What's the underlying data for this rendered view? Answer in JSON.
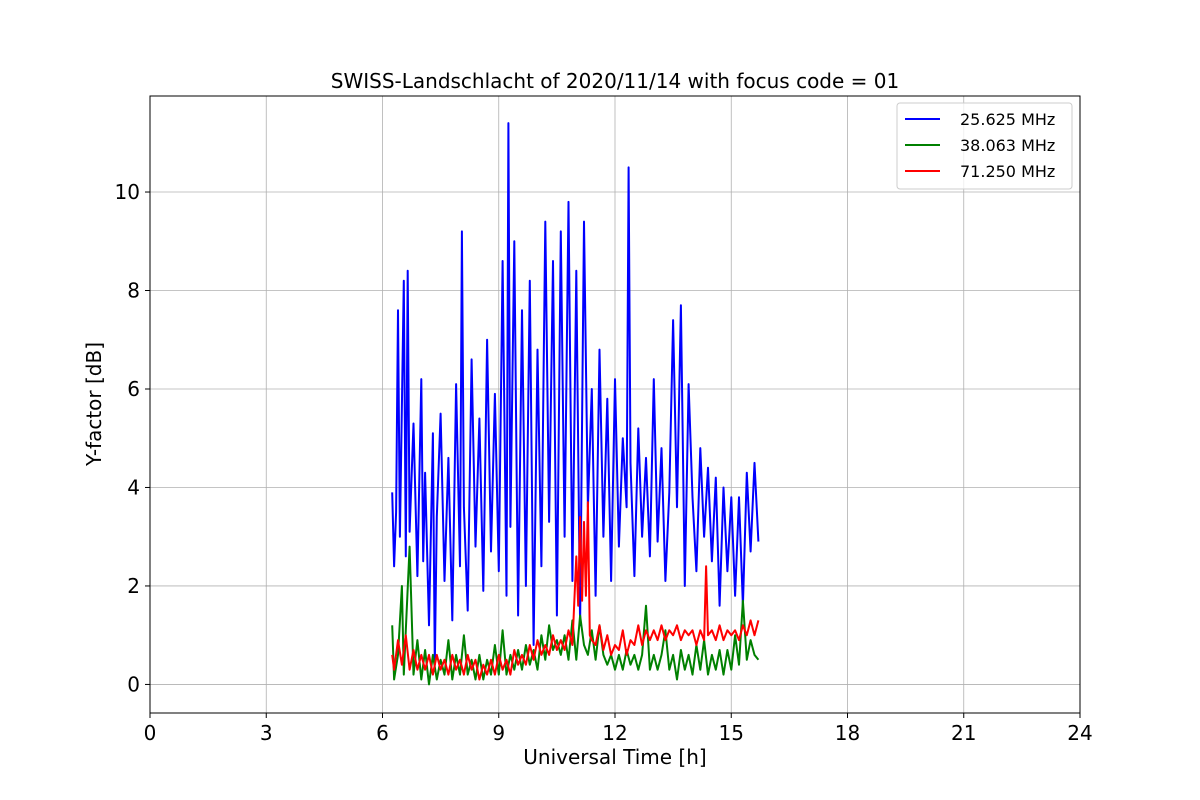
{
  "chart_data": {
    "type": "line",
    "title": "SWISS-Landschlacht of 2020/11/14 with focus code = 01",
    "xlabel": "Universal Time [h]",
    "ylabel": "Y-factor [dB]",
    "xlim": [
      0,
      24
    ],
    "ylim": [
      -0.58,
      11.95
    ],
    "xticks": [
      0,
      3,
      6,
      9,
      12,
      15,
      18,
      21,
      24
    ],
    "xtick_labels": [
      "0",
      "3",
      "6",
      "9",
      "12",
      "15",
      "18",
      "21",
      "24"
    ],
    "yticks": [
      0,
      2,
      4,
      6,
      8,
      10
    ],
    "ytick_labels": [
      "0",
      "2",
      "4",
      "6",
      "8",
      "10"
    ],
    "grid": true,
    "legend_position": "top-right",
    "series": [
      {
        "name": "25.625 MHz",
        "color": "#0000ff",
        "x": [
          6.25,
          6.3,
          6.35,
          6.4,
          6.45,
          6.55,
          6.6,
          6.65,
          6.7,
          6.8,
          6.9,
          7.0,
          7.05,
          7.1,
          7.2,
          7.3,
          7.35,
          7.4,
          7.5,
          7.6,
          7.7,
          7.8,
          7.9,
          8.0,
          8.05,
          8.1,
          8.2,
          8.3,
          8.4,
          8.5,
          8.6,
          8.7,
          8.8,
          8.9,
          9.0,
          9.1,
          9.2,
          9.25,
          9.3,
          9.4,
          9.5,
          9.6,
          9.7,
          9.8,
          9.9,
          10.0,
          10.1,
          10.2,
          10.3,
          10.4,
          10.5,
          10.6,
          10.7,
          10.8,
          10.9,
          11.0,
          11.1,
          11.2,
          11.3,
          11.4,
          11.5,
          11.6,
          11.7,
          11.8,
          11.9,
          12.0,
          12.1,
          12.2,
          12.3,
          12.35,
          12.4,
          12.5,
          12.6,
          12.7,
          12.8,
          12.9,
          13.0,
          13.1,
          13.2,
          13.3,
          13.4,
          13.5,
          13.6,
          13.7,
          13.8,
          13.9,
          14.0,
          14.1,
          14.2,
          14.3,
          14.4,
          14.5,
          14.6,
          14.7,
          14.8,
          14.9,
          15.0,
          15.1,
          15.2,
          15.3,
          15.4,
          15.5,
          15.6,
          15.7
        ],
        "y": [
          3.9,
          2.4,
          3.5,
          7.6,
          3.0,
          8.2,
          2.6,
          8.4,
          3.1,
          5.3,
          2.2,
          6.2,
          2.5,
          4.3,
          1.2,
          5.1,
          0.4,
          3.4,
          5.5,
          2.1,
          4.6,
          1.3,
          6.1,
          2.4,
          9.2,
          3.6,
          1.5,
          6.6,
          2.8,
          5.4,
          1.9,
          7.0,
          2.7,
          5.9,
          2.3,
          8.6,
          1.8,
          11.4,
          3.2,
          9.0,
          1.4,
          7.6,
          2.0,
          8.2,
          0.8,
          6.8,
          2.4,
          9.4,
          3.3,
          8.6,
          1.4,
          9.2,
          3.0,
          9.8,
          2.1,
          8.4,
          1.2,
          9.4,
          3.6,
          6.0,
          1.8,
          6.8,
          3.0,
          5.8,
          2.1,
          6.2,
          2.8,
          5.0,
          3.6,
          10.5,
          4.5,
          2.2,
          5.2,
          3.0,
          4.6,
          2.6,
          6.2,
          2.9,
          4.8,
          2.1,
          3.9,
          7.4,
          3.6,
          7.7,
          2.0,
          6.1,
          3.8,
          2.3,
          4.8,
          3.0,
          4.4,
          2.5,
          4.2,
          1.6,
          4.0,
          2.3,
          3.8,
          1.8,
          3.8,
          1.6,
          4.3,
          2.7,
          4.5,
          2.9
        ]
      },
      {
        "name": "38.063 MHz",
        "color": "#008000",
        "x": [
          6.25,
          6.3,
          6.4,
          6.5,
          6.55,
          6.6,
          6.7,
          6.8,
          6.9,
          7.0,
          7.1,
          7.2,
          7.3,
          7.4,
          7.5,
          7.6,
          7.7,
          7.8,
          7.9,
          8.0,
          8.1,
          8.2,
          8.3,
          8.4,
          8.5,
          8.6,
          8.7,
          8.8,
          8.9,
          9.0,
          9.1,
          9.2,
          9.3,
          9.4,
          9.5,
          9.6,
          9.7,
          9.8,
          9.9,
          10.0,
          10.1,
          10.2,
          10.3,
          10.4,
          10.5,
          10.6,
          10.7,
          10.8,
          10.9,
          11.0,
          11.1,
          11.2,
          11.3,
          11.4,
          11.5,
          11.6,
          11.7,
          11.8,
          11.9,
          12.0,
          12.1,
          12.2,
          12.3,
          12.4,
          12.5,
          12.6,
          12.7,
          12.8,
          12.9,
          13.0,
          13.1,
          13.2,
          13.3,
          13.4,
          13.5,
          13.6,
          13.7,
          13.8,
          13.9,
          14.0,
          14.1,
          14.2,
          14.3,
          14.4,
          14.5,
          14.6,
          14.7,
          14.8,
          14.9,
          15.0,
          15.1,
          15.2,
          15.3,
          15.4,
          15.5,
          15.6,
          15.7
        ],
        "y": [
          1.2,
          0.1,
          0.6,
          2.0,
          0.2,
          1.1,
          2.8,
          0.2,
          0.9,
          0.1,
          0.7,
          0.0,
          0.6,
          0.1,
          0.5,
          0.2,
          0.9,
          0.1,
          0.6,
          0.2,
          1.0,
          0.2,
          0.5,
          0.1,
          0.6,
          0.1,
          0.5,
          0.2,
          0.8,
          0.2,
          1.1,
          0.2,
          0.6,
          0.3,
          0.7,
          0.3,
          0.8,
          0.4,
          0.7,
          0.3,
          1.0,
          0.5,
          1.2,
          0.7,
          0.9,
          0.6,
          1.0,
          0.5,
          1.3,
          0.5,
          1.4,
          0.8,
          0.6,
          1.1,
          0.5,
          1.2,
          0.6,
          0.4,
          0.6,
          0.3,
          0.6,
          0.3,
          0.7,
          0.4,
          0.6,
          0.3,
          0.6,
          1.6,
          0.3,
          0.6,
          0.3,
          0.6,
          1.1,
          0.3,
          0.6,
          0.1,
          0.7,
          0.3,
          0.6,
          0.2,
          0.8,
          0.3,
          0.9,
          0.2,
          0.6,
          0.3,
          0.7,
          0.2,
          0.7,
          0.3,
          1.0,
          0.4,
          1.7,
          0.5,
          0.9,
          0.6,
          0.5
        ]
      },
      {
        "name": "71.250 MHz",
        "color": "#ff0000",
        "x": [
          6.25,
          6.3,
          6.4,
          6.5,
          6.6,
          6.7,
          6.8,
          6.9,
          7.0,
          7.1,
          7.2,
          7.3,
          7.4,
          7.5,
          7.6,
          7.7,
          7.8,
          7.9,
          8.0,
          8.1,
          8.2,
          8.3,
          8.4,
          8.5,
          8.6,
          8.7,
          8.8,
          8.9,
          9.0,
          9.1,
          9.2,
          9.3,
          9.4,
          9.5,
          9.6,
          9.7,
          9.8,
          9.9,
          10.0,
          10.1,
          10.2,
          10.3,
          10.4,
          10.5,
          10.6,
          10.7,
          10.8,
          10.9,
          11.0,
          11.05,
          11.1,
          11.15,
          11.2,
          11.25,
          11.3,
          11.35,
          11.4,
          11.5,
          11.6,
          11.7,
          11.8,
          11.9,
          12.0,
          12.1,
          12.2,
          12.3,
          12.4,
          12.5,
          12.6,
          12.7,
          12.8,
          12.9,
          13.0,
          13.1,
          13.2,
          13.3,
          13.4,
          13.5,
          13.6,
          13.7,
          13.8,
          13.9,
          14.0,
          14.1,
          14.2,
          14.3,
          14.35,
          14.4,
          14.5,
          14.6,
          14.7,
          14.8,
          14.9,
          15.0,
          15.1,
          15.2,
          15.3,
          15.4,
          15.5,
          15.6,
          15.7
        ],
        "y": [
          0.6,
          0.3,
          0.9,
          0.4,
          1.0,
          0.3,
          0.7,
          0.3,
          0.6,
          0.3,
          0.6,
          0.2,
          0.6,
          0.3,
          0.5,
          0.2,
          0.6,
          0.3,
          0.5,
          0.2,
          0.6,
          0.3,
          0.5,
          0.1,
          0.4,
          0.2,
          0.5,
          0.2,
          0.6,
          0.3,
          0.5,
          0.2,
          0.7,
          0.4,
          0.6,
          0.4,
          0.8,
          0.5,
          0.9,
          0.6,
          0.8,
          0.6,
          1.0,
          0.7,
          0.9,
          0.7,
          1.1,
          0.8,
          2.6,
          1.6,
          3.4,
          1.7,
          3.3,
          1.8,
          3.7,
          1.0,
          0.9,
          0.8,
          1.2,
          0.7,
          1.0,
          0.6,
          0.8,
          0.7,
          1.1,
          0.6,
          0.9,
          0.8,
          1.2,
          0.8,
          1.1,
          0.9,
          1.1,
          0.9,
          1.2,
          0.9,
          1.1,
          1.0,
          1.2,
          0.9,
          1.1,
          1.0,
          1.1,
          0.8,
          1.1,
          0.9,
          2.4,
          1.0,
          1.1,
          0.9,
          1.2,
          0.9,
          1.1,
          1.0,
          1.1,
          0.9,
          1.2,
          1.0,
          1.3,
          1.0,
          1.3
        ]
      }
    ]
  }
}
